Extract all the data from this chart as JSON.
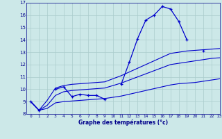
{
  "xlabel": "Graphe des températures (°c)",
  "background_color": "#cce8e8",
  "grid_color": "#aacccc",
  "text_color": "#00008B",
  "line_color": "#0000cc",
  "hours": [
    0,
    1,
    2,
    3,
    4,
    5,
    6,
    7,
    8,
    9,
    10,
    11,
    12,
    13,
    14,
    15,
    16,
    17,
    18,
    19,
    20,
    21,
    22,
    23
  ],
  "temp_actual": [
    9.0,
    8.3,
    null,
    10.0,
    10.2,
    9.4,
    9.6,
    9.5,
    9.5,
    9.2,
    null,
    10.4,
    12.2,
    14.1,
    15.6,
    16.0,
    16.7,
    16.5,
    15.5,
    14.0,
    null,
    13.1,
    null,
    null
  ],
  "line_min": [
    9.0,
    8.3,
    8.45,
    8.9,
    9.0,
    9.05,
    9.1,
    9.15,
    9.2,
    9.25,
    9.35,
    9.45,
    9.6,
    9.75,
    9.9,
    10.05,
    10.2,
    10.35,
    10.45,
    10.5,
    10.55,
    10.65,
    10.75,
    10.85
  ],
  "line_mid": [
    9.0,
    8.3,
    8.7,
    9.5,
    9.8,
    9.9,
    9.95,
    10.0,
    10.05,
    10.1,
    10.3,
    10.5,
    10.75,
    11.0,
    11.25,
    11.5,
    11.75,
    12.0,
    12.1,
    12.2,
    12.3,
    12.4,
    12.5,
    12.55
  ],
  "line_max": [
    9.0,
    8.3,
    9.1,
    10.1,
    10.3,
    10.4,
    10.45,
    10.5,
    10.55,
    10.6,
    10.85,
    11.1,
    11.4,
    11.7,
    12.0,
    12.3,
    12.6,
    12.9,
    13.0,
    13.1,
    13.15,
    13.2,
    13.25,
    13.3
  ],
  "ylim": [
    8,
    17
  ],
  "xlim": [
    -0.5,
    23
  ],
  "yticks": [
    8,
    9,
    10,
    11,
    12,
    13,
    14,
    15,
    16,
    17
  ],
  "xticks": [
    0,
    1,
    2,
    3,
    4,
    5,
    6,
    7,
    8,
    9,
    10,
    11,
    12,
    13,
    14,
    15,
    16,
    17,
    18,
    19,
    20,
    21,
    22,
    23
  ]
}
